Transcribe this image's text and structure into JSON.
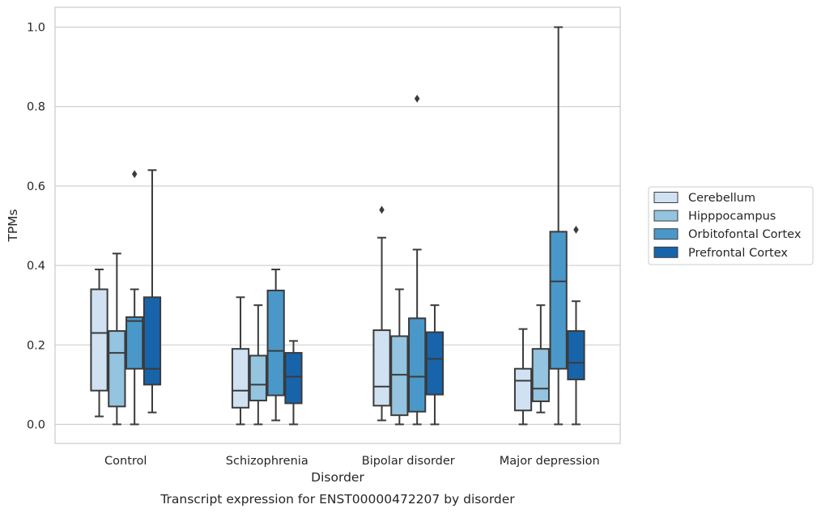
{
  "chart_data": {
    "type": "box",
    "caption": "Transcript expression for ENST00000472207 by disorder",
    "xlabel": "Disorder",
    "ylabel": "TPMs",
    "ylim": [
      -0.048,
      1.05
    ],
    "yticks": [
      0.0,
      0.2,
      0.4,
      0.6,
      0.8,
      1.0
    ],
    "ytick_labels": [
      "0.0",
      "0.2",
      "0.4",
      "0.6",
      "0.8",
      "1.0"
    ],
    "grid": "horizontal",
    "legend_position": "right",
    "categories": [
      "Control",
      "Schizophrenia",
      "Bipolar disorder",
      "Major depression"
    ],
    "series": [
      {
        "name": "Cerebellum",
        "color": "#d0e1f2",
        "boxes": [
          {
            "whislo": 0.02,
            "q1": 0.085,
            "med": 0.23,
            "q3": 0.34,
            "whishi": 0.39,
            "fliers": []
          },
          {
            "whislo": 0.0,
            "q1": 0.042,
            "med": 0.085,
            "q3": 0.19,
            "whishi": 0.32,
            "fliers": []
          },
          {
            "whislo": 0.01,
            "q1": 0.047,
            "med": 0.095,
            "q3": 0.237,
            "whishi": 0.47,
            "fliers": [
              0.54
            ]
          },
          {
            "whislo": 0.0,
            "q1": 0.035,
            "med": 0.11,
            "q3": 0.14,
            "whishi": 0.24,
            "fliers": []
          }
        ]
      },
      {
        "name": "Hipppocampus",
        "color": "#94c4df",
        "boxes": [
          {
            "whislo": 0.0,
            "q1": 0.045,
            "med": 0.18,
            "q3": 0.235,
            "whishi": 0.43,
            "fliers": []
          },
          {
            "whislo": 0.0,
            "q1": 0.06,
            "med": 0.1,
            "q3": 0.173,
            "whishi": 0.3,
            "fliers": []
          },
          {
            "whislo": 0.0,
            "q1": 0.023,
            "med": 0.125,
            "q3": 0.222,
            "whishi": 0.34,
            "fliers": []
          },
          {
            "whislo": 0.03,
            "q1": 0.058,
            "med": 0.09,
            "q3": 0.19,
            "whishi": 0.3,
            "fliers": []
          }
        ]
      },
      {
        "name": "Orbitofontal Cortex",
        "color": "#4a98c9",
        "boxes": [
          {
            "whislo": 0.0,
            "q1": 0.14,
            "med": 0.26,
            "q3": 0.27,
            "whishi": 0.34,
            "fliers": [
              0.63
            ]
          },
          {
            "whislo": 0.01,
            "q1": 0.073,
            "med": 0.185,
            "q3": 0.337,
            "whishi": 0.39,
            "fliers": []
          },
          {
            "whislo": 0.0,
            "q1": 0.032,
            "med": 0.12,
            "q3": 0.267,
            "whishi": 0.44,
            "fliers": [
              0.82
            ]
          },
          {
            "whislo": 0.0,
            "q1": 0.14,
            "med": 0.36,
            "q3": 0.485,
            "whishi": 1.0,
            "fliers": []
          }
        ]
      },
      {
        "name": "Prefrontal Cortex",
        "color": "#1764ab",
        "boxes": [
          {
            "whislo": 0.03,
            "q1": 0.1,
            "med": 0.14,
            "q3": 0.32,
            "whishi": 0.64,
            "fliers": []
          },
          {
            "whislo": 0.0,
            "q1": 0.053,
            "med": 0.12,
            "q3": 0.18,
            "whishi": 0.21,
            "fliers": []
          },
          {
            "whislo": 0.0,
            "q1": 0.075,
            "med": 0.165,
            "q3": 0.232,
            "whishi": 0.3,
            "fliers": []
          },
          {
            "whislo": 0.0,
            "q1": 0.113,
            "med": 0.155,
            "q3": 0.235,
            "whishi": 0.31,
            "fliers": [
              0.49
            ]
          }
        ]
      }
    ]
  }
}
